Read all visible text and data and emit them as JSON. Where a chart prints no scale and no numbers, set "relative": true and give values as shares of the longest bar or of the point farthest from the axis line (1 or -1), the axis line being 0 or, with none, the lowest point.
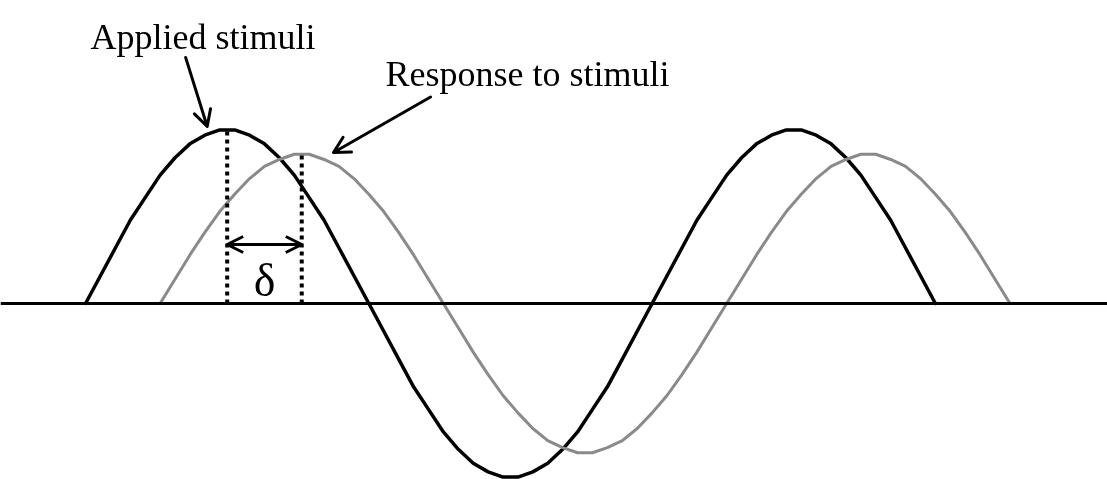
{
  "chart_data": {
    "type": "line",
    "relative": true,
    "categories": [
      null,
      null,
      null,
      null,
      null,
      null,
      null,
      null,
      null,
      null,
      null,
      null,
      null,
      null,
      null,
      null,
      null,
      null,
      null,
      null,
      null,
      null,
      null,
      null,
      null,
      null,
      null,
      null,
      null,
      null,
      null,
      null,
      null,
      null,
      null,
      null,
      null,
      null,
      null,
      null,
      null,
      null,
      null,
      null,
      null,
      null,
      null,
      null,
      null,
      null,
      null,
      null,
      null,
      null,
      null,
      null,
      null,
      null,
      null,
      null,
      null,
      null,
      null
    ],
    "series": [
      {
        "name": "Applied stimuli",
        "color": "#000000",
        "values": [
          0,
          0.16,
          0.32,
          0.48,
          0.61,
          0.74,
          0.84,
          0.92,
          0.97,
          1.0,
          1.0,
          0.97,
          0.92,
          0.84,
          0.74,
          0.61,
          0.48,
          0.32,
          0.16,
          0,
          -0.16,
          -0.32,
          -0.48,
          -0.61,
          -0.74,
          -0.84,
          -0.92,
          -0.97,
          -1.0,
          -1.0,
          -0.97,
          -0.92,
          -0.84,
          -0.74,
          -0.61,
          -0.48,
          -0.32,
          -0.16,
          0,
          0.16,
          0.32,
          0.48,
          0.61,
          0.74,
          0.84,
          0.92,
          0.97,
          1.0,
          1.0,
          0.97,
          0.92,
          0.84,
          0.74,
          0.61,
          0.48,
          0.32,
          0.16,
          0,
          null,
          null,
          null,
          null,
          null
        ]
      },
      {
        "name": "Response to stimuli",
        "color": "#8a8a8a",
        "values": [
          null,
          null,
          null,
          null,
          null,
          0,
          0.14,
          0.28,
          0.41,
          0.53,
          0.63,
          0.72,
          0.79,
          0.83,
          0.86,
          0.86,
          0.83,
          0.79,
          0.72,
          0.63,
          0.53,
          0.41,
          0.28,
          0.14,
          0,
          -0.14,
          -0.28,
          -0.41,
          -0.53,
          -0.63,
          -0.72,
          -0.79,
          -0.83,
          -0.86,
          -0.86,
          -0.83,
          -0.79,
          -0.72,
          -0.63,
          -0.53,
          -0.41,
          -0.28,
          -0.14,
          0,
          0.14,
          0.28,
          0.41,
          0.53,
          0.63,
          0.72,
          0.79,
          0.83,
          0.86,
          0.86,
          0.83,
          0.79,
          0.72,
          0.63,
          0.53,
          0.41,
          0.28,
          0.14,
          0
        ]
      }
    ],
    "annotations": [
      "δ"
    ]
  }
}
